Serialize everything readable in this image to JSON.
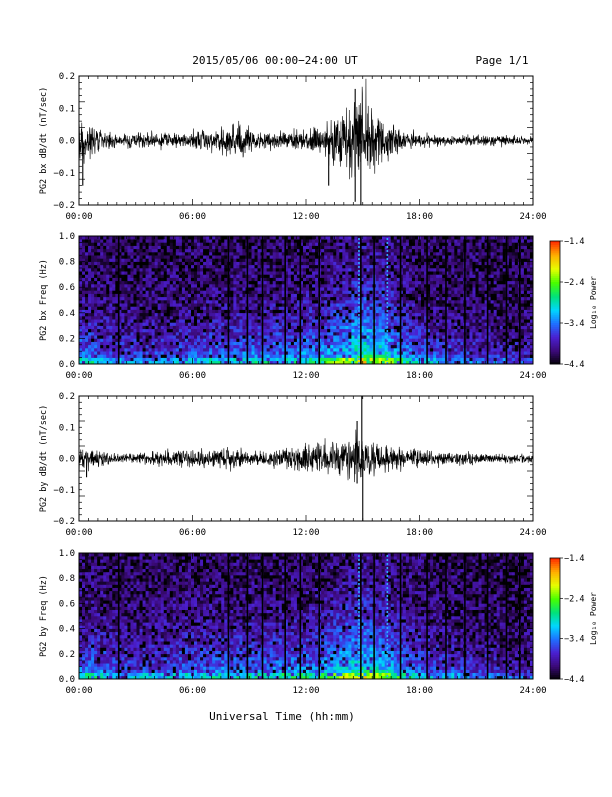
{
  "header": {
    "title": "2015/05/06  00:00−24:00 UT",
    "page": "Page 1/1"
  },
  "footer": {
    "xlabel": "Universal Time (hh:mm)"
  },
  "colorbar": {
    "tick_labels": [
      "−1.4",
      "−2.4",
      "−3.4",
      "−4.4"
    ],
    "tick_values": [
      -1.4,
      -2.4,
      -3.4,
      -4.4
    ],
    "range": [
      -4.4,
      -1.4
    ],
    "label": "Log₁₀ Power",
    "colormap": [
      "#000000",
      "#3b0a78",
      "#4b1fd0",
      "#1f6fff",
      "#00d7ff",
      "#00e27a",
      "#48ff00",
      "#e6ff00",
      "#ffb000",
      "#ff3000"
    ]
  },
  "chart_data": [
    {
      "type": "line",
      "panel": "bx_waveform",
      "ylabel": "PG2 bx dB/dt (nT/sec)",
      "xlim": [
        0,
        24
      ],
      "ylim": [
        -0.2,
        0.2
      ],
      "x_ticks": [
        "00:00",
        "06:00",
        "12:00",
        "18:00",
        "24:00"
      ],
      "y_ticks": [
        "−0.2",
        "−0.1",
        "0.0",
        "0.1",
        "0.2"
      ],
      "y_tick_values": [
        -0.2,
        -0.1,
        0.0,
        0.1,
        0.2
      ],
      "envelope": {
        "x": [
          0,
          0.5,
          1,
          2,
          3,
          4,
          5,
          6,
          7,
          8,
          8.5,
          9,
          10,
          11,
          12,
          12.5,
          13,
          13.5,
          14,
          14.5,
          15,
          15.5,
          16,
          16.5,
          17,
          18,
          19,
          20,
          21,
          22,
          23,
          24
        ],
        "amplitude": [
          0.08,
          0.05,
          0.03,
          0.02,
          0.02,
          0.02,
          0.02,
          0.025,
          0.03,
          0.04,
          0.06,
          0.03,
          0.025,
          0.025,
          0.03,
          0.04,
          0.05,
          0.07,
          0.09,
          0.1,
          0.14,
          0.08,
          0.06,
          0.05,
          0.03,
          0.02,
          0.015,
          0.015,
          0.015,
          0.015,
          0.012,
          0.012
        ]
      },
      "spikes": [
        {
          "x": 0.2,
          "y": -0.14
        },
        {
          "x": 13.2,
          "y": -0.14
        },
        {
          "x": 14.6,
          "y": -0.19
        },
        {
          "x": 14.9,
          "y": -0.2
        },
        {
          "x": 14.6,
          "y": 0.16
        }
      ]
    },
    {
      "type": "heatmap",
      "panel": "bx_spectrogram",
      "ylabel": "PG2 bx Freq (Hz)",
      "xlim": [
        0,
        24
      ],
      "ylim": [
        0,
        1
      ],
      "x_ticks": [
        "00:00",
        "06:00",
        "12:00",
        "18:00",
        "24:00"
      ],
      "y_ticks": [
        "0.0",
        "0.2",
        "0.4",
        "0.6",
        "0.8",
        "1.0"
      ],
      "y_tick_values": [
        0,
        0.2,
        0.4,
        0.6,
        0.8,
        1.0
      ],
      "activity_profile": {
        "x": [
          0,
          1,
          2,
          3,
          4,
          5,
          6,
          7,
          8,
          9,
          10,
          11,
          12,
          13,
          14,
          15,
          16,
          17,
          18,
          19,
          20,
          21,
          22,
          23,
          24
        ],
        "level": [
          0.55,
          0.45,
          0.35,
          0.35,
          0.35,
          0.4,
          0.4,
          0.45,
          0.45,
          0.5,
          0.5,
          0.5,
          0.55,
          0.6,
          0.75,
          0.9,
          0.8,
          0.6,
          0.45,
          0.4,
          0.35,
          0.3,
          0.3,
          0.25,
          0.25
        ]
      },
      "dark_lines_hours": [
        2.1,
        7.9,
        8.9,
        9.7,
        10.9,
        11.7,
        12.7,
        14.9,
        15.6,
        17.0,
        18.4,
        19.4,
        20.4,
        21.6,
        22.6,
        23.3
      ],
      "bright_lines_hours": [
        14.8,
        16.3
      ]
    },
    {
      "type": "line",
      "panel": "by_waveform",
      "ylabel": "PG2 by dB/dt (nT/sec)",
      "xlim": [
        0,
        24
      ],
      "ylim": [
        -0.2,
        0.2
      ],
      "x_ticks": [
        "00:00",
        "06:00",
        "12:00",
        "18:00",
        "24:00"
      ],
      "y_ticks": [
        "−0.2",
        "−0.1",
        "0.0",
        "0.1",
        "0.2"
      ],
      "y_tick_values": [
        -0.2,
        -0.1,
        0.0,
        0.1,
        0.2
      ],
      "envelope": {
        "x": [
          0,
          0.5,
          1,
          2,
          3,
          4,
          5,
          6,
          7,
          8,
          9,
          10,
          11,
          12,
          13,
          14,
          14.5,
          15,
          15.5,
          16,
          17,
          18,
          19,
          20,
          21,
          22,
          23,
          24
        ],
        "amplitude": [
          0.03,
          0.03,
          0.02,
          0.015,
          0.015,
          0.02,
          0.02,
          0.025,
          0.025,
          0.03,
          0.02,
          0.02,
          0.03,
          0.04,
          0.045,
          0.05,
          0.06,
          0.06,
          0.05,
          0.04,
          0.03,
          0.025,
          0.02,
          0.02,
          0.015,
          0.012,
          0.012,
          0.012
        ]
      },
      "spikes": [
        {
          "x": 0.4,
          "y": -0.06
        },
        {
          "x": 14.7,
          "y": 0.12
        },
        {
          "x": 14.7,
          "y": -0.08
        },
        {
          "x": 14.95,
          "y": 0.2
        },
        {
          "x": 15.0,
          "y": -0.2
        }
      ]
    },
    {
      "type": "heatmap",
      "panel": "by_spectrogram",
      "ylabel": "PG2 by Freq (Hz)",
      "xlim": [
        0,
        24
      ],
      "ylim": [
        0,
        1
      ],
      "x_ticks": [
        "00:00",
        "06:00",
        "12:00",
        "18:00",
        "24:00"
      ],
      "y_ticks": [
        "0.0",
        "0.2",
        "0.4",
        "0.6",
        "0.8",
        "1.0"
      ],
      "y_tick_values": [
        0,
        0.2,
        0.4,
        0.6,
        0.8,
        1.0
      ],
      "activity_profile": {
        "x": [
          0,
          1,
          2,
          3,
          4,
          5,
          6,
          7,
          8,
          9,
          10,
          11,
          12,
          13,
          14,
          15,
          16,
          17,
          18,
          19,
          20,
          21,
          22,
          23,
          24
        ],
        "level": [
          0.55,
          0.5,
          0.4,
          0.4,
          0.4,
          0.45,
          0.45,
          0.5,
          0.5,
          0.5,
          0.5,
          0.55,
          0.55,
          0.6,
          0.75,
          0.85,
          0.75,
          0.6,
          0.45,
          0.4,
          0.35,
          0.3,
          0.3,
          0.25,
          0.25
        ]
      },
      "dark_lines_hours": [
        2.1,
        7.9,
        8.9,
        9.7,
        10.9,
        11.7,
        12.7,
        14.9,
        15.6,
        17.0,
        18.4,
        19.4,
        20.4,
        21.6,
        22.6,
        23.3
      ],
      "bright_lines_hours": [
        14.8,
        16.3
      ]
    }
  ]
}
